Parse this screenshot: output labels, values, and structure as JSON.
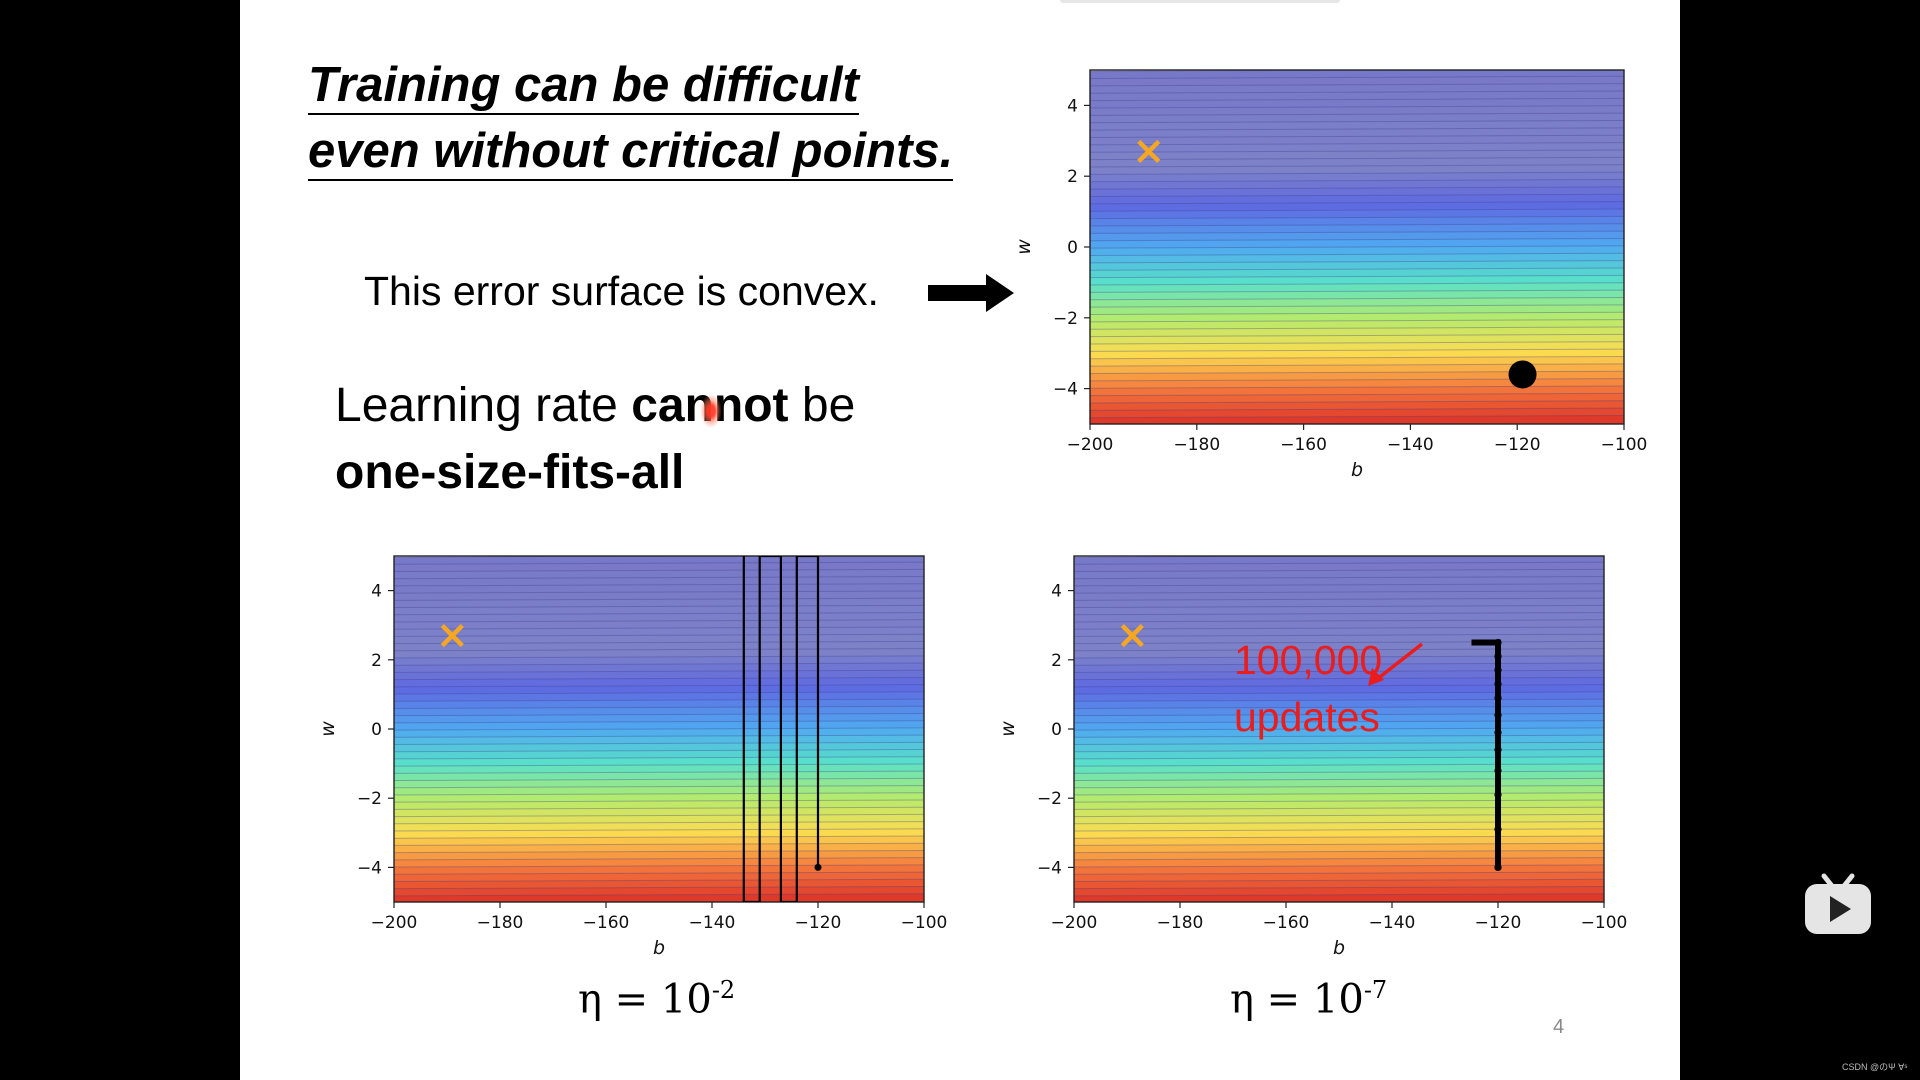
{
  "slide": {
    "title_line1": "Training can be difficult",
    "title_line2": "even without critical points.",
    "convex_text": "This error surface is convex.",
    "lr_part1": "Learning rate ",
    "lr_bold1": "cannot",
    "lr_part2": " be",
    "lr_bold2": "one-size-fits-all",
    "eta_left_base": "η = 10",
    "eta_left_exp": "-2",
    "eta_right_base": "η = 10",
    "eta_right_exp": "-7",
    "annotation_line1": "100,000",
    "annotation_line2": "updates",
    "page_number": "4"
  },
  "watermark": "CSDN @のΨ Ɐˢ",
  "chart_data": [
    {
      "type": "heatmap",
      "id": "top",
      "xlabel": "b",
      "ylabel": "w",
      "xlim": [
        -200,
        -100
      ],
      "ylim": [
        -5,
        5
      ],
      "xticks": [
        -200,
        -180,
        -160,
        -140,
        -120,
        -100
      ],
      "yticks": [
        -4,
        -2,
        0,
        2,
        4
      ],
      "target": {
        "b": -189,
        "w": 2.7,
        "marker": "x",
        "color": "#f5a623"
      },
      "start": {
        "b": -119,
        "w": -3.6,
        "marker": "dot",
        "color": "#000000"
      },
      "path": []
    },
    {
      "type": "heatmap",
      "id": "left",
      "xlabel": "b",
      "ylabel": "w",
      "xlim": [
        -200,
        -100
      ],
      "ylim": [
        -5,
        5
      ],
      "xticks": [
        -200,
        -180,
        -160,
        -140,
        -120,
        -100
      ],
      "yticks": [
        -4,
        -2,
        0,
        2,
        4
      ],
      "learning_rate": "1e-2",
      "target": {
        "b": -189,
        "w": 2.7,
        "marker": "x",
        "color": "#f5a623"
      },
      "start": {
        "b": -120,
        "w": -4,
        "marker": "dot",
        "color": "#000000"
      },
      "path": [
        [
          -120,
          -4
        ],
        [
          -120,
          5
        ],
        [
          -124,
          5
        ],
        [
          -124,
          -5
        ],
        [
          -127,
          -5
        ],
        [
          -127,
          5
        ],
        [
          -131,
          5
        ],
        [
          -131,
          -5
        ],
        [
          -134,
          -5
        ],
        [
          -134,
          5
        ]
      ]
    },
    {
      "type": "heatmap",
      "id": "right",
      "xlabel": "b",
      "ylabel": "w",
      "xlim": [
        -200,
        -100
      ],
      "ylim": [
        -5,
        5
      ],
      "xticks": [
        -200,
        -180,
        -160,
        -140,
        -120,
        -100
      ],
      "yticks": [
        -4,
        -2,
        0,
        2,
        4
      ],
      "learning_rate": "1e-7",
      "target": {
        "b": -189,
        "w": 2.7,
        "marker": "x",
        "color": "#f5a623"
      },
      "start": {
        "b": -120,
        "w": -4,
        "marker": "dot",
        "color": "#000000"
      },
      "path": [
        [
          -120,
          -4
        ],
        [
          -120,
          -2.9
        ],
        [
          -120,
          -1.9
        ],
        [
          -120,
          -1.2
        ],
        [
          -120,
          -0.6
        ],
        [
          -120,
          -0.1
        ],
        [
          -120,
          0.4
        ],
        [
          -120,
          0.9
        ],
        [
          -120,
          1.3
        ],
        [
          -120,
          1.7
        ],
        [
          -120,
          2.1
        ],
        [
          -120,
          2.5
        ],
        [
          -122,
          2.5
        ],
        [
          -124,
          2.5
        ],
        [
          -125,
          2.5
        ]
      ],
      "path_points": [
        [
          -120,
          -4
        ],
        [
          -120,
          -2.9
        ],
        [
          -120,
          -1.9
        ],
        [
          -120,
          -1.2
        ],
        [
          -120,
          -0.6
        ],
        [
          -120,
          -0.1
        ],
        [
          -120,
          0.4
        ],
        [
          -120,
          0.9
        ],
        [
          -120,
          1.3
        ],
        [
          -120,
          1.7
        ],
        [
          -120,
          2.1
        ],
        [
          -120,
          2.5
        ]
      ]
    }
  ]
}
